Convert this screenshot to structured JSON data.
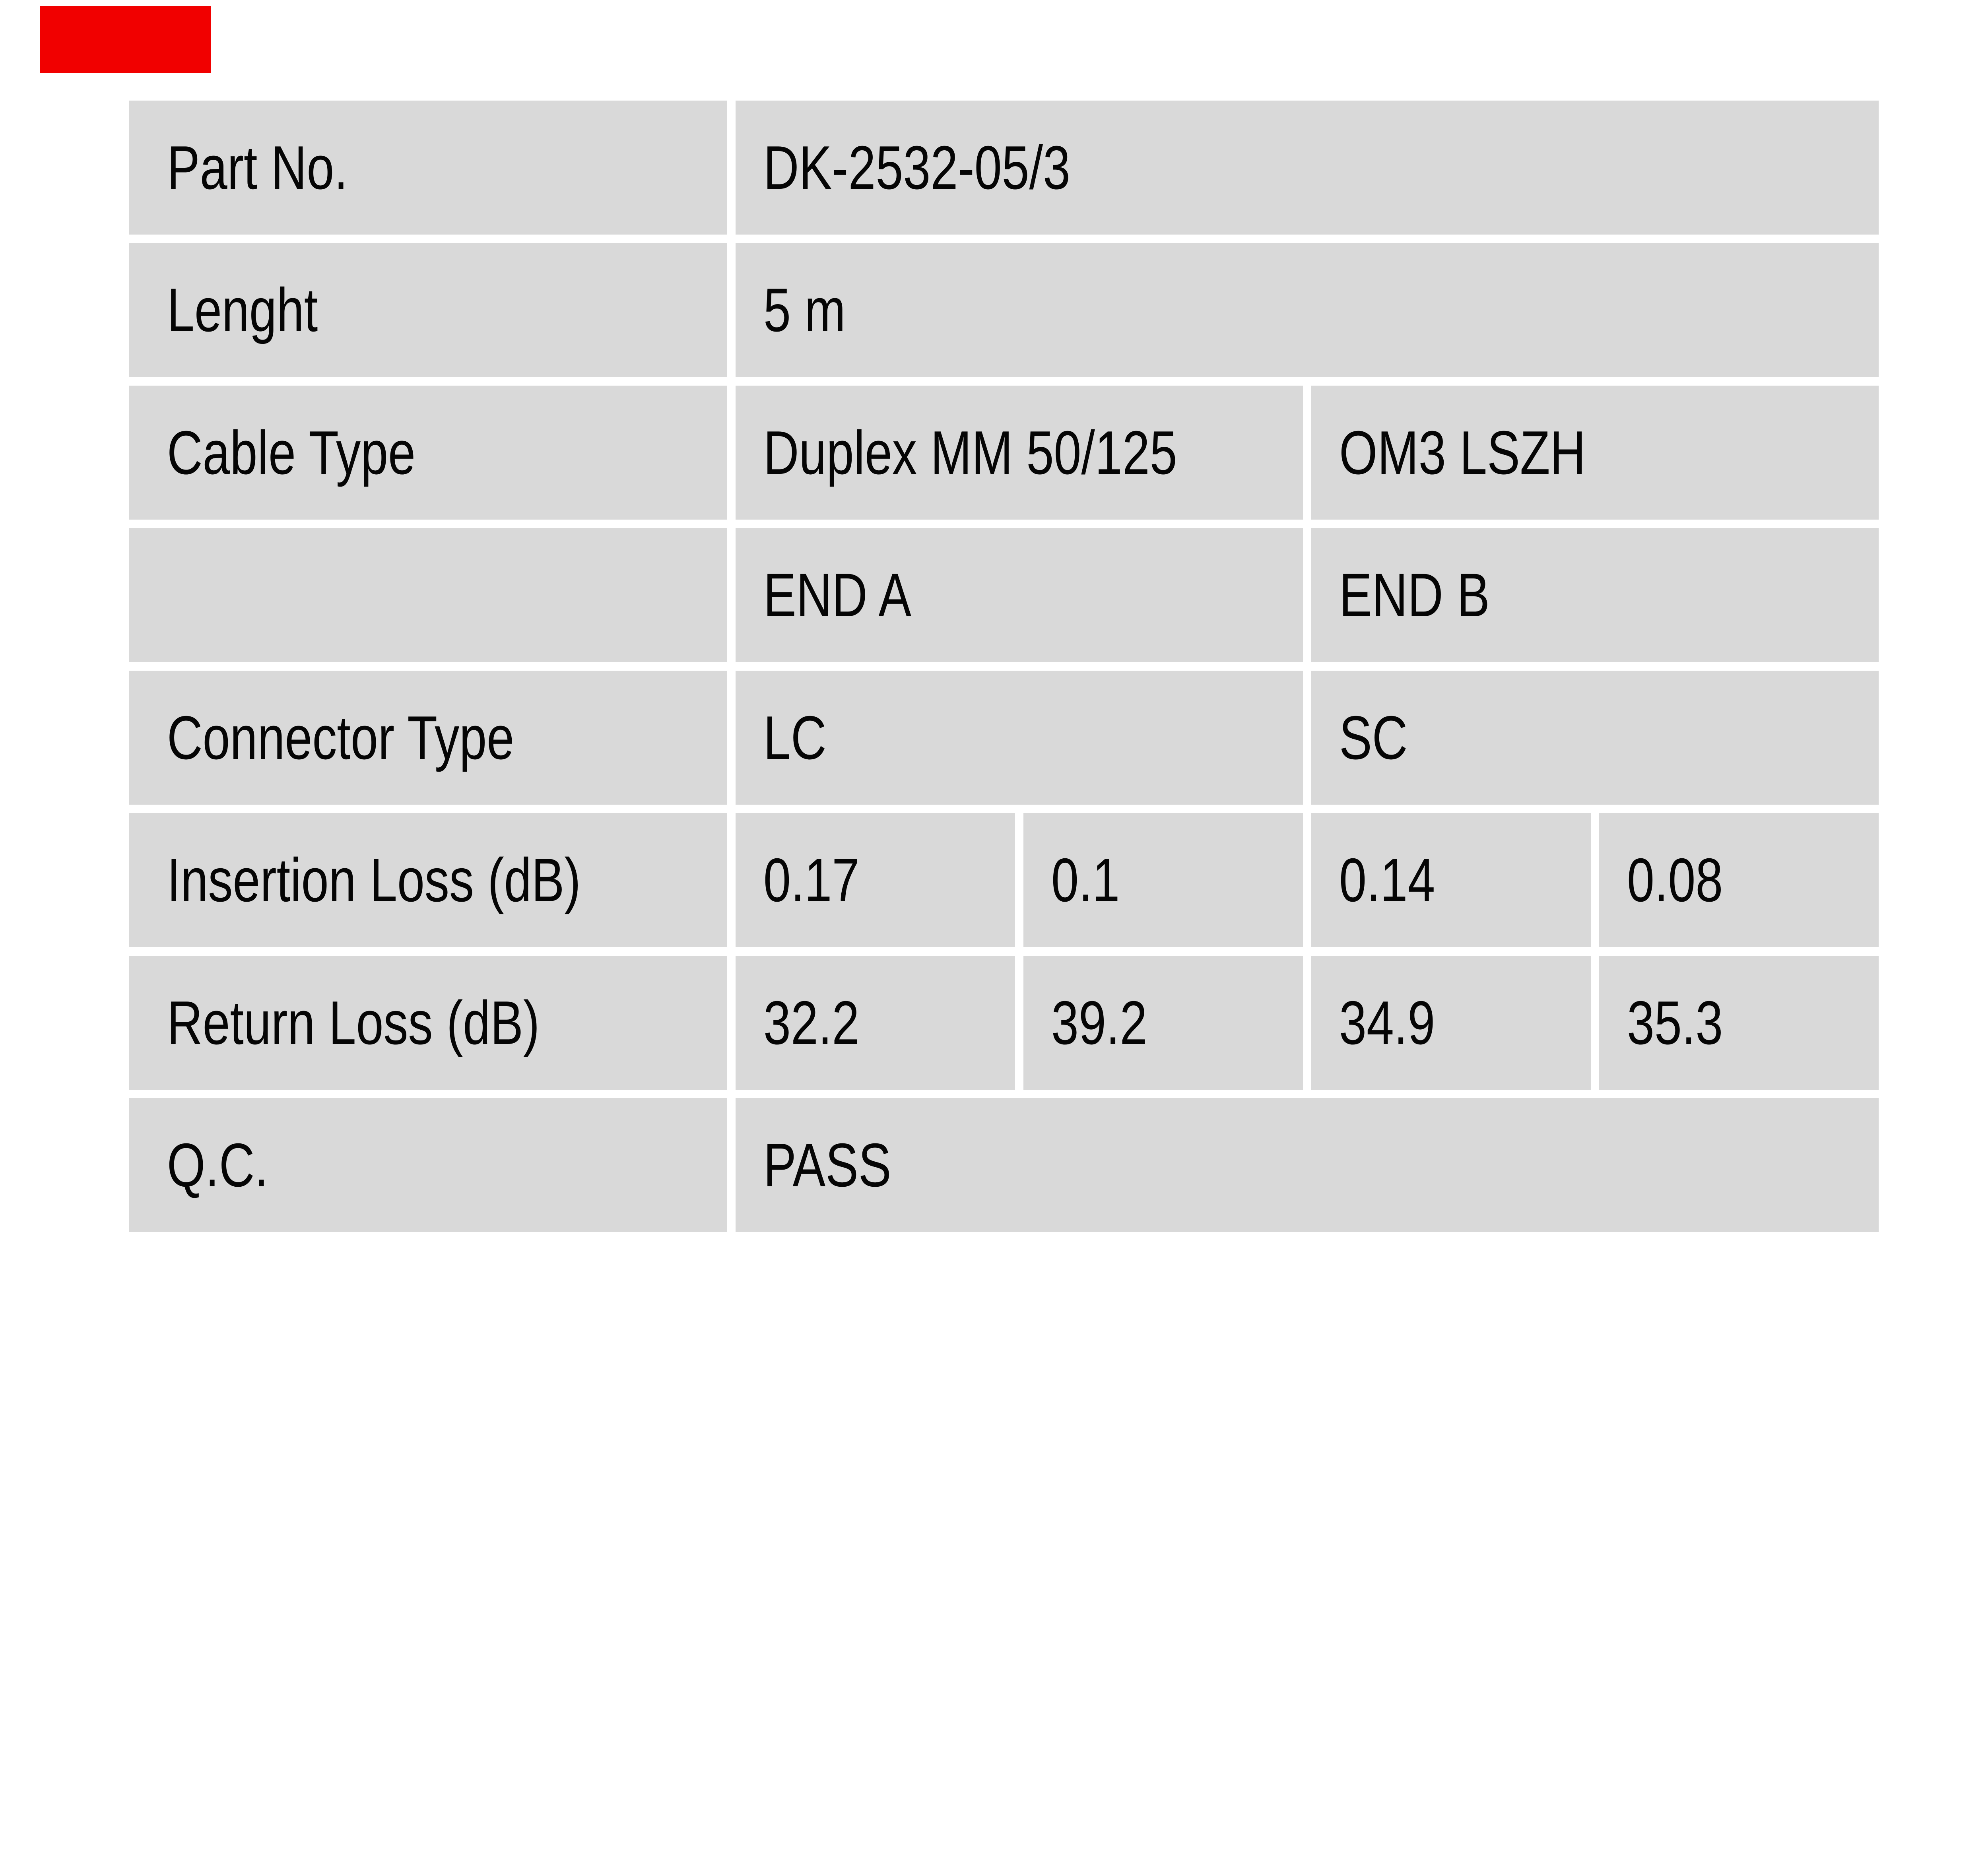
{
  "colors": {
    "page_bg": "#ffffff",
    "cell_bg": "#d9d9d9",
    "text": "#050505",
    "logo_red": "#f10000"
  },
  "table": {
    "rows": [
      {
        "label": "Part No.",
        "values": [
          {
            "text": "DK-2532-05/3",
            "span": 4
          }
        ]
      },
      {
        "label": "Lenght",
        "values": [
          {
            "text": "5 m",
            "span": 4
          }
        ]
      },
      {
        "label": "Cable Type",
        "values": [
          {
            "text": "Duplex MM 50/125",
            "span": 2
          },
          {
            "text": "OM3 LSZH",
            "span": 2
          }
        ]
      },
      {
        "label": "",
        "values": [
          {
            "text": "END A",
            "span": 2
          },
          {
            "text": "END B",
            "span": 2
          }
        ]
      },
      {
        "label": "Connector Type",
        "values": [
          {
            "text": "LC",
            "span": 2
          },
          {
            "text": "SC",
            "span": 2
          }
        ]
      },
      {
        "label": "Insertion Loss (dB)",
        "values": [
          {
            "text": "0.17",
            "span": 1
          },
          {
            "text": "0.1",
            "span": 1
          },
          {
            "text": "0.14",
            "span": 1
          },
          {
            "text": "0.08",
            "span": 1
          }
        ]
      },
      {
        "label": "Return Loss (dB)",
        "values": [
          {
            "text": "32.2",
            "span": 1
          },
          {
            "text": "39.2",
            "span": 1
          },
          {
            "text": "34.9",
            "span": 1
          },
          {
            "text": "35.3",
            "span": 1
          }
        ]
      },
      {
        "label": "Q.C.",
        "values": [
          {
            "text": "PASS",
            "span": 4
          }
        ]
      }
    ]
  }
}
